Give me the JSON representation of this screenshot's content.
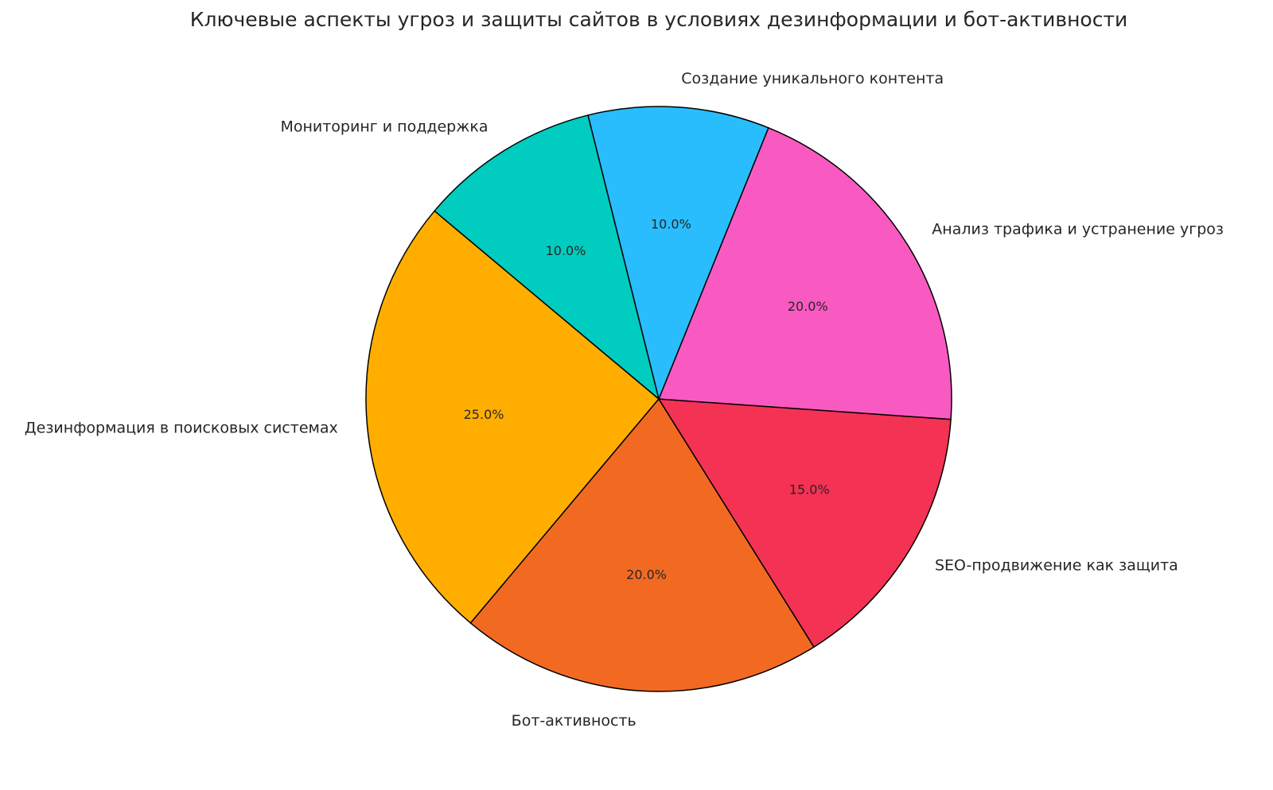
{
  "chart_data": {
    "type": "pie",
    "title": "Ключевые аспекты угроз и защиты сайтов в условиях дезинформации и бот-активности",
    "start_angle_deg": 140,
    "direction": "counterclockwise",
    "slices": [
      {
        "label": "Дезинформация в поисковых системах",
        "value": 25,
        "pct_label": "25.0%",
        "color": "#FFAE00"
      },
      {
        "label": "Бот-активность",
        "value": 20,
        "pct_label": "20.0%",
        "color": "#F26A22"
      },
      {
        "label": "SEO-продвижение как защита",
        "value": 15,
        "pct_label": "15.0%",
        "color": "#F43254"
      },
      {
        "label": "Анализ трафика и устранение угроз",
        "value": 20,
        "pct_label": "20.0%",
        "color": "#F85AC2"
      },
      {
        "label": "Создание уникального контента",
        "value": 10,
        "pct_label": "10.0%",
        "color": "#29BDFD"
      },
      {
        "label": "Мониторинг и поддержка",
        "value": 10,
        "pct_label": "10.0%",
        "color": "#00CCBF"
      }
    ]
  }
}
